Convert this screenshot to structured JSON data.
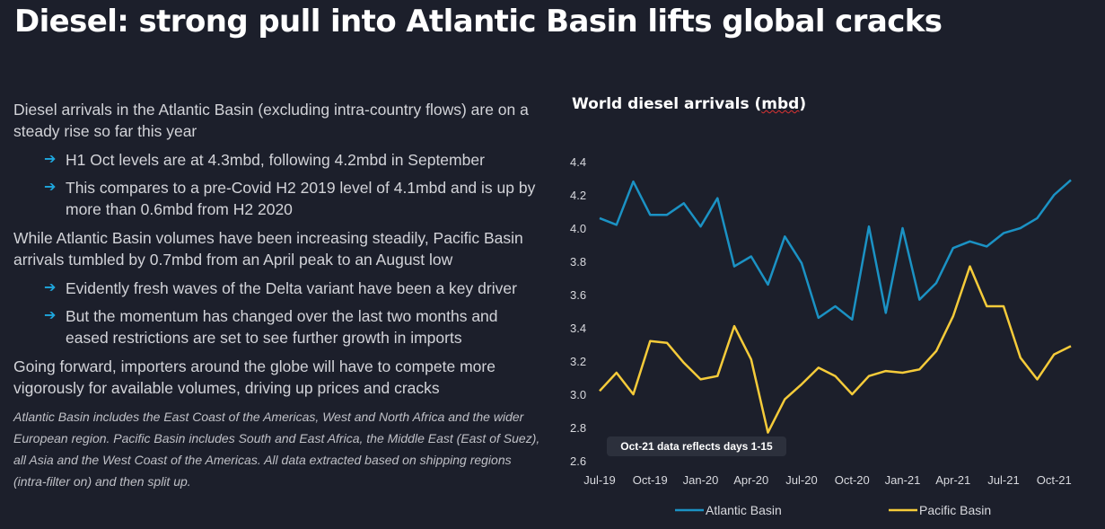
{
  "title": "Diesel: strong pull into Atlantic Basin lifts global cracks",
  "text": {
    "p1": "Diesel arrivals in the Atlantic Basin (excluding intra-country flows) are on a steady rise so far this year",
    "b1": [
      "H1 Oct levels are at 4.3mbd, following 4.2mbd in September",
      "This compares to a pre-Covid H2 2019 level of 4.1mbd and is up by more than 0.6mbd from H2 2020"
    ],
    "p2": "While Atlantic Basin volumes have been increasing steadily, Pacific Basin arrivals tumbled by 0.7mbd from an April peak to an August low",
    "b2": [
      "Evidently fresh waves of the Delta variant have been a key driver",
      "But the momentum has changed over the last two months and eased restrictions are set to see further growth in imports"
    ],
    "p3": "Going forward, importers around the globe will have to compete more vigorously for available volumes, driving up prices and cracks",
    "note": "Atlantic Basin includes the  East Coast of the Americas, West and North Africa and the wider European region. Pacific Basin includes South and East Africa, the Middle East (East of Suez), all Asia and the West Coast of the Americas. All data extracted based on shipping regions (intra-filter on) and then split up."
  },
  "chart_data": {
    "type": "line",
    "title_main": "World diesel arrivals (",
    "title_unit": "mbd",
    "title_end": ")",
    "ylim": [
      2.6,
      4.4
    ],
    "yticks": [
      2.6,
      2.8,
      3.0,
      3.2,
      3.4,
      3.6,
      3.8,
      4.0,
      4.2,
      4.4
    ],
    "xticks": [
      "Jul-19",
      "Oct-19",
      "Jan-20",
      "Apr-20",
      "Jul-20",
      "Oct-20",
      "Jan-21",
      "Apr-21",
      "Jul-21",
      "Oct-21"
    ],
    "annotation": "Oct-21 data reflects days 1-15",
    "series": [
      {
        "name": "Atlantic Basin",
        "color": "#1b92c4",
        "values": [
          4.06,
          4.02,
          4.28,
          4.08,
          4.08,
          4.15,
          4.01,
          4.18,
          3.77,
          3.83,
          3.66,
          3.95,
          3.79,
          3.46,
          3.53,
          3.45,
          4.01,
          3.49,
          4.0,
          3.57,
          3.67,
          3.88,
          3.92,
          3.89,
          3.97,
          4.0,
          4.06,
          4.2,
          4.29
        ]
      },
      {
        "name": "Pacific Basin",
        "color": "#f5cb3a",
        "values": [
          3.02,
          3.13,
          3.0,
          3.32,
          3.31,
          3.19,
          3.09,
          3.11,
          3.41,
          3.21,
          2.77,
          2.97,
          3.06,
          3.16,
          3.11,
          3.0,
          3.11,
          3.14,
          3.13,
          3.15,
          3.26,
          3.47,
          3.77,
          3.53,
          3.53,
          3.22,
          3.09,
          3.24,
          3.29
        ]
      }
    ]
  }
}
